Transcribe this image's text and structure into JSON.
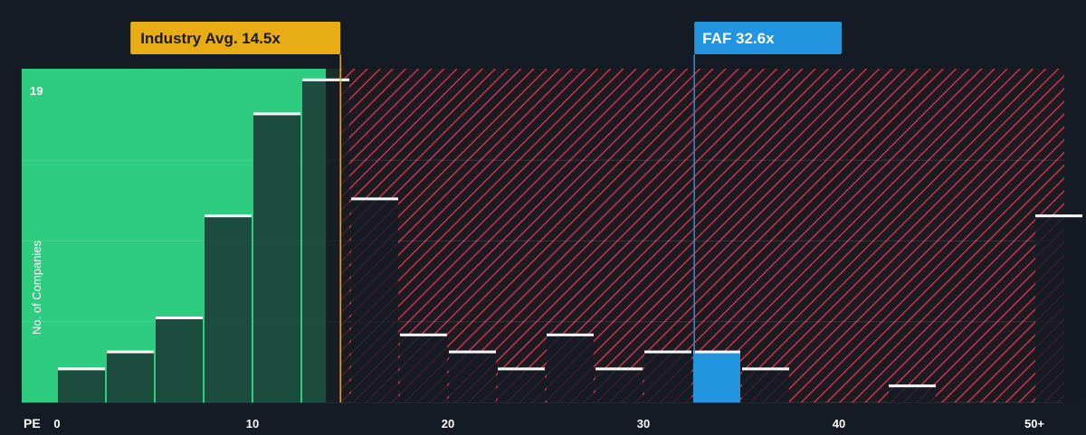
{
  "chart_data": {
    "type": "bar",
    "xlabel": "PE",
    "ylabel": "No. of Companies",
    "x_ticks": [
      "0",
      "10",
      "20",
      "30",
      "40",
      "50+"
    ],
    "x_tick_values": [
      0,
      10,
      20,
      30,
      40,
      50
    ],
    "y_max_label": "19",
    "ylim": [
      0,
      19
    ],
    "xlim": [
      0,
      51
    ],
    "bin_width": 2.5,
    "bins": [
      {
        "start": 0.0,
        "value": 2
      },
      {
        "start": 2.5,
        "value": 3
      },
      {
        "start": 5.0,
        "value": 5
      },
      {
        "start": 7.5,
        "value": 11
      },
      {
        "start": 10.0,
        "value": 17
      },
      {
        "start": 12.5,
        "value": 19
      },
      {
        "start": 15.0,
        "value": 12
      },
      {
        "start": 17.5,
        "value": 4
      },
      {
        "start": 20.0,
        "value": 3
      },
      {
        "start": 22.5,
        "value": 2
      },
      {
        "start": 25.0,
        "value": 4
      },
      {
        "start": 27.5,
        "value": 2
      },
      {
        "start": 30.0,
        "value": 3
      },
      {
        "start": 32.5,
        "value": 3,
        "highlight": true
      },
      {
        "start": 35.0,
        "value": 2
      },
      {
        "start": 37.5,
        "value": 0
      },
      {
        "start": 40.0,
        "value": 0
      },
      {
        "start": 42.5,
        "value": 1
      },
      {
        "start": 45.0,
        "value": 0
      },
      {
        "start": 47.5,
        "value": 0
      },
      {
        "start": 50.0,
        "value": 11
      }
    ],
    "industry_avg": {
      "label": "Industry Avg. 14.5x",
      "value": 14.5
    },
    "company": {
      "label": "FAF 32.6x",
      "value": 32.6
    },
    "grid": true,
    "colors": {
      "background": "#151b24",
      "fair_zone": "#2ecc7f",
      "overvalued_hatch": "#c0394a",
      "bar_fill": "#1f2a33",
      "bar_top": "#ffffff",
      "industry_marker": "#e8ad14",
      "company_marker": "#2394e0",
      "text": "#ffffff"
    }
  }
}
